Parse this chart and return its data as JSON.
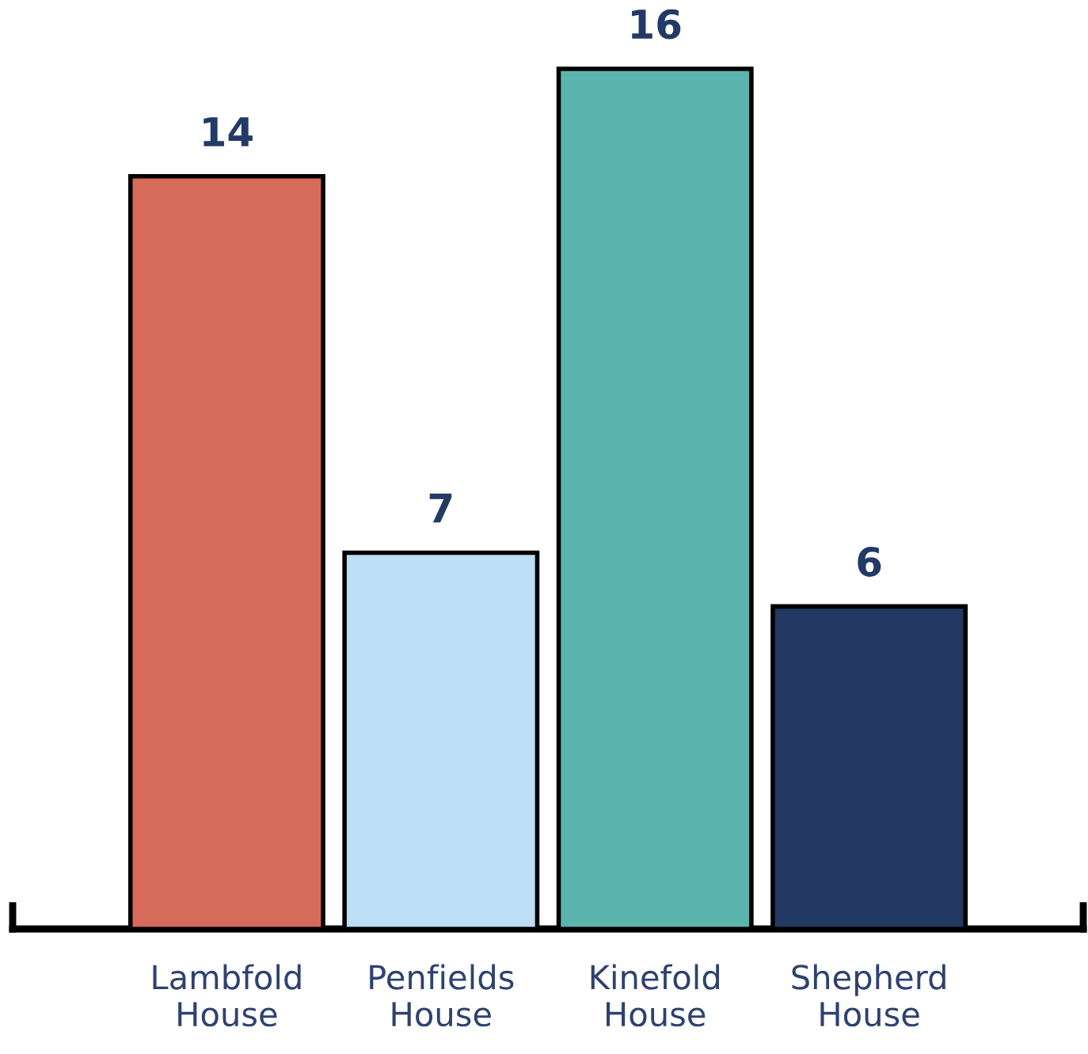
{
  "chart_data": {
    "type": "bar",
    "categories": [
      "Lambfold\nHouse",
      "Penfields\nHouse",
      "Kinefold\nHouse",
      "Shepherd\nHouse"
    ],
    "values": [
      14,
      7,
      16,
      6
    ],
    "colors": [
      "#d56b58",
      "#bddff5",
      "#5cb4ae",
      "#233862"
    ],
    "data_labels": true,
    "grid": false,
    "legend": false
  }
}
